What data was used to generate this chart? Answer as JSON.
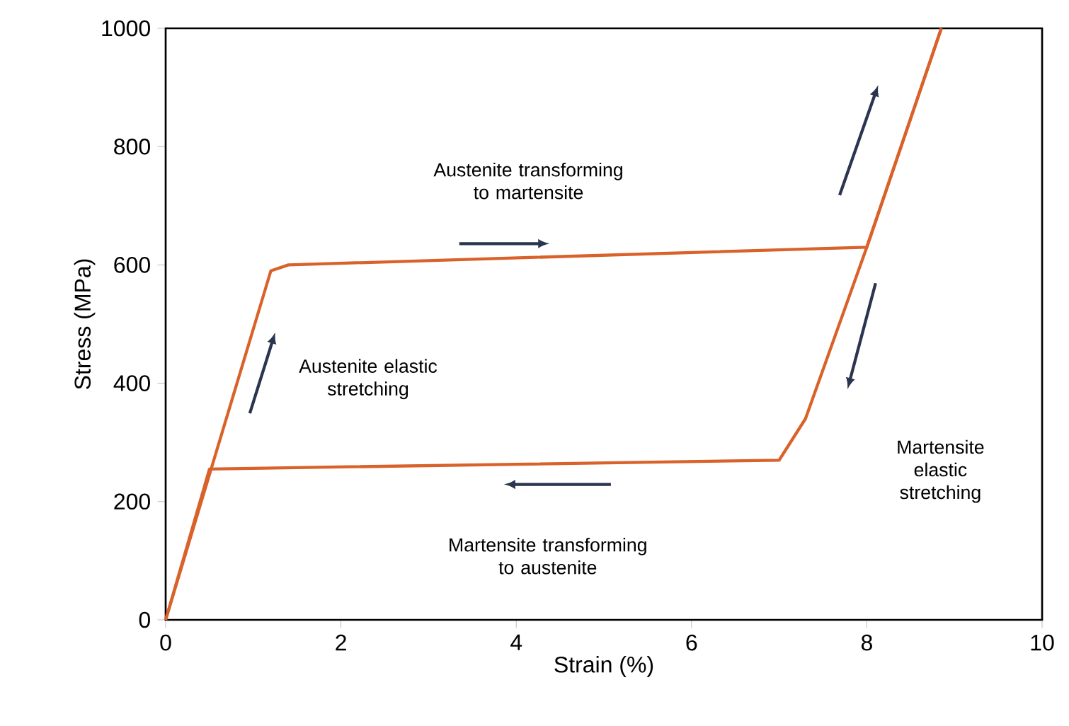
{
  "chart_data": {
    "type": "line",
    "xlabel": "Strain (%)",
    "ylabel": "Stress (MPa)",
    "series": [
      {
        "color": "#d9622b",
        "x": [
          0,
          1.2,
          1.4,
          8,
          8.85
        ],
        "values": [
          0,
          590,
          600,
          630,
          1000
        ]
      },
      {
        "color": "#d9622b",
        "x": [
          8.85,
          8,
          7.3,
          7,
          0.5,
          0
        ],
        "values": [
          1000,
          630,
          340,
          270,
          255,
          0
        ]
      }
    ],
    "xlim": [
      0,
      10
    ],
    "xticks": [
      0,
      2,
      4,
      6,
      8,
      10
    ],
    "ylim": [
      0,
      1000
    ],
    "yticks": [
      0,
      200,
      400,
      600,
      800,
      1000
    ],
    "marker": "none",
    "line_style": "solid",
    "annotations": [
      "Austenite transforming to martensite",
      "Austenite elastic stretching",
      "Martensite elastic stretching",
      "Martensite transforming to austenite"
    ]
  }
}
